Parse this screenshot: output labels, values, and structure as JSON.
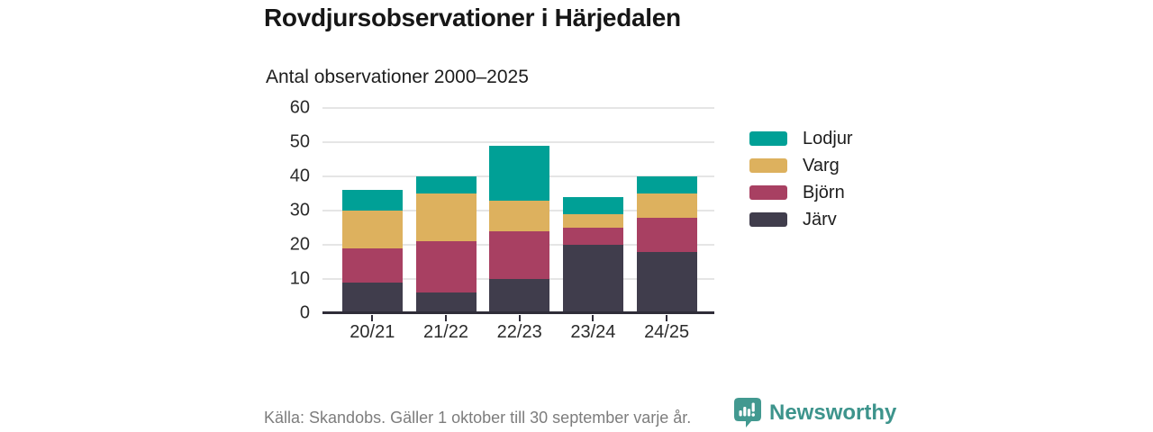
{
  "header": {
    "title": "Rovdjursobservationer i Härjedalen",
    "subtitle": "Antal observationer 2000–2025"
  },
  "chart_data": {
    "type": "bar",
    "stacked": true,
    "title": "Rovdjursobservationer i Härjedalen",
    "subtitle": "Antal observationer 2000–2025",
    "categories": [
      "20/21",
      "21/22",
      "22/23",
      "23/24",
      "24/25"
    ],
    "series": [
      {
        "name": "Järv",
        "color": "#403d4c",
        "values": [
          9,
          6,
          10,
          20,
          18
        ]
      },
      {
        "name": "Björn",
        "color": "#a84062",
        "values": [
          10,
          15,
          14,
          5,
          10
        ]
      },
      {
        "name": "Varg",
        "color": "#ddb15e",
        "values": [
          11,
          14,
          9,
          4,
          7
        ]
      },
      {
        "name": "Lodjur",
        "color": "#00a096",
        "values": [
          6,
          5,
          16,
          5,
          5
        ]
      }
    ],
    "stack_totals": [
      36,
      40,
      49,
      34,
      40
    ],
    "legend_order": [
      "Lodjur",
      "Varg",
      "Björn",
      "Järv"
    ],
    "legend_position": "right",
    "ylim": [
      0,
      60
    ],
    "yticks": [
      0,
      10,
      20,
      30,
      40,
      50,
      60
    ],
    "grid": true,
    "xlabel": "",
    "ylabel": ""
  },
  "footer": {
    "source": "Källa: Skandobs. Gäller 1 oktober till 30 september varje år.",
    "brand": "Newsworthy"
  },
  "colors": {
    "lodjur_teal": "#00a096",
    "varg_gold": "#ddb15e",
    "bjorn_maroon": "#a84062",
    "jarv_dark": "#403d4c",
    "axis": "#2f2d38",
    "gridline": "#e5e5e5",
    "title_text": "#161616",
    "muted_text": "#7d7d7d",
    "brand_teal": "#3d948c",
    "brand_icon_teal": "#429990"
  }
}
